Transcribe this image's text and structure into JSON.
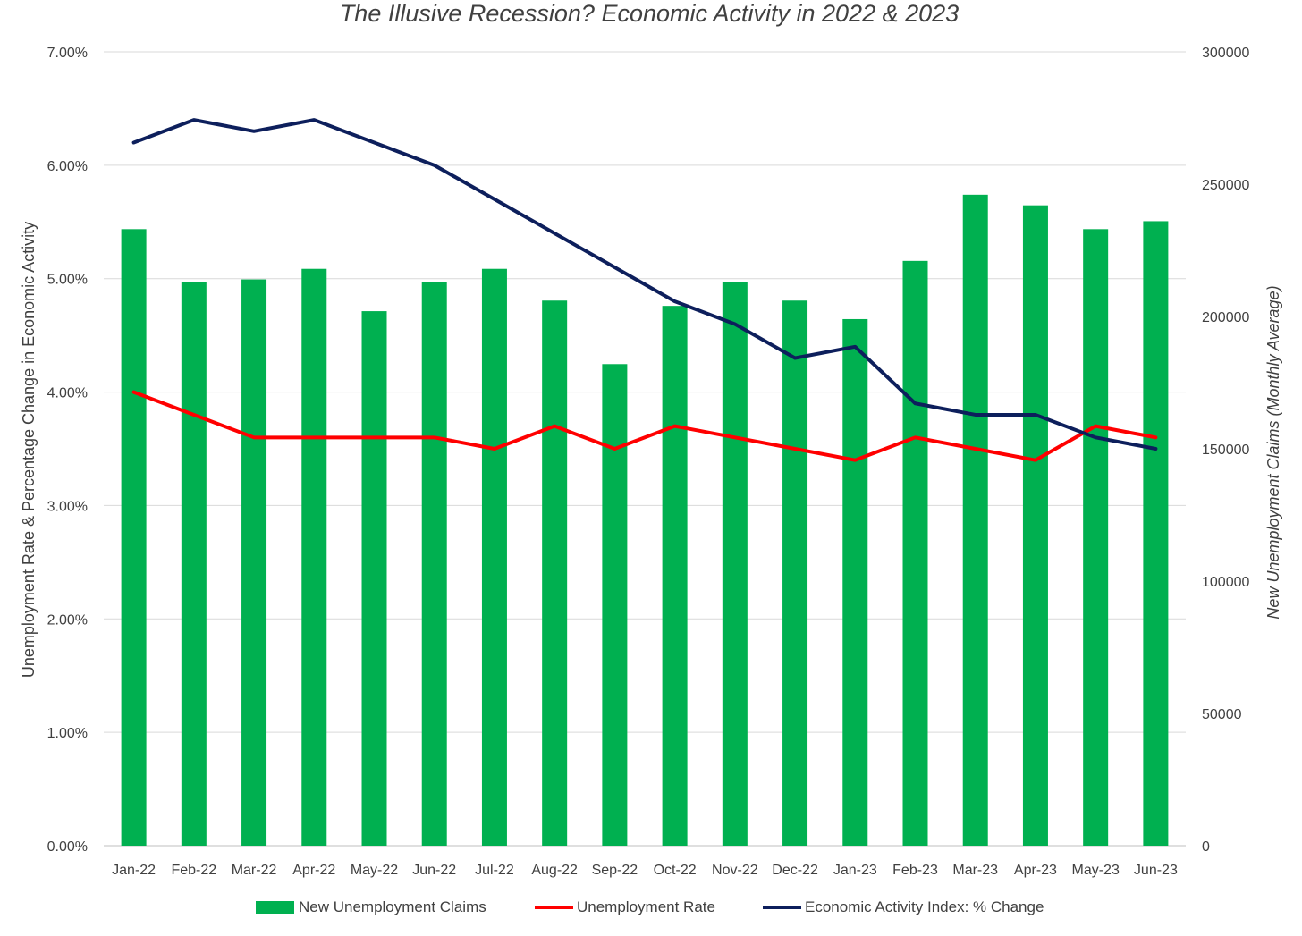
{
  "chart_data": {
    "type": "bar",
    "title": "The Illusive Recession? Economic Activity in 2022 & 2023",
    "categories": [
      "Jan-22",
      "Feb-22",
      "Mar-22",
      "Apr-22",
      "May-22",
      "Jun-22",
      "Jul-22",
      "Aug-22",
      "Sep-22",
      "Oct-22",
      "Nov-22",
      "Dec-22",
      "Jan-23",
      "Feb-23",
      "Mar-23",
      "Apr-23",
      "May-23",
      "Jun-23"
    ],
    "ylabel": "Unemployment Rate & Percentage Change in  Economic Activity",
    "y2label": "New Unemployment Claims (Monthly Average)",
    "ylim": [
      0,
      0.07
    ],
    "y2lim": [
      0,
      300000
    ],
    "y_ticks": [
      "0.00%",
      "1.00%",
      "2.00%",
      "3.00%",
      "4.00%",
      "5.00%",
      "6.00%",
      "7.00%"
    ],
    "y2_ticks": [
      "0",
      "50000",
      "100000",
      "150000",
      "200000",
      "250000",
      "300000"
    ],
    "grid": true,
    "legend_position": "bottom",
    "series": [
      {
        "name": "New Unemployment Claims",
        "kind": "bar",
        "axis": "right",
        "color": "#00b050",
        "values": [
          233000,
          213000,
          214000,
          218000,
          202000,
          213000,
          218000,
          206000,
          182000,
          204000,
          213000,
          206000,
          199000,
          221000,
          246000,
          242000,
          233000,
          236000
        ]
      },
      {
        "name": "Unemployment Rate",
        "kind": "line",
        "axis": "left",
        "color": "#ff0000",
        "values": [
          0.04,
          0.038,
          0.036,
          0.036,
          0.036,
          0.036,
          0.035,
          0.037,
          0.035,
          0.037,
          0.036,
          0.035,
          0.034,
          0.036,
          0.035,
          0.034,
          0.037,
          0.036
        ]
      },
      {
        "name": "Economic Activity Index: % Change",
        "kind": "line",
        "axis": "left",
        "color": "#0d1f5c",
        "values": [
          0.062,
          0.064,
          0.063,
          0.064,
          0.062,
          0.06,
          0.057,
          0.054,
          0.051,
          0.048,
          0.046,
          0.043,
          0.044,
          0.039,
          0.038,
          0.038,
          0.036,
          0.035
        ]
      }
    ]
  }
}
